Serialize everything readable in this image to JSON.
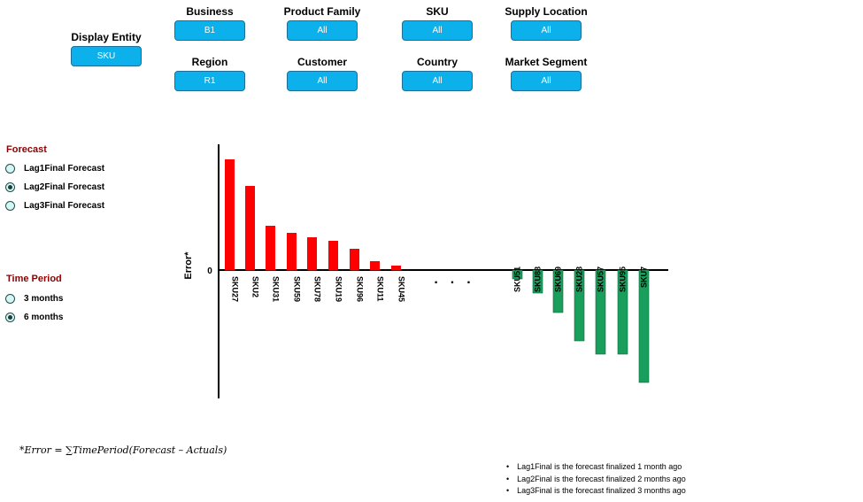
{
  "display_entity": {
    "label": "Display Entity",
    "value": "SKU"
  },
  "filters": [
    {
      "label": "Business",
      "value": "B1"
    },
    {
      "label": "Product Family",
      "value": "All"
    },
    {
      "label": "SKU",
      "value": "All"
    },
    {
      "label": "Supply Location",
      "value": "All"
    },
    {
      "label": "Region",
      "value": "R1"
    },
    {
      "label": "Customer",
      "value": "All"
    },
    {
      "label": "Country",
      "value": "All"
    },
    {
      "label": "Market Segment",
      "value": "All"
    }
  ],
  "forecast": {
    "title": "Forecast",
    "options": [
      "Lag1Final Forecast",
      "Lag2Final Forecast",
      "Lag3Final Forecast"
    ],
    "selected": 1
  },
  "time_period": {
    "title": "Time Period",
    "options": [
      "3 months",
      "6 months"
    ],
    "selected": 1
  },
  "chart_data": {
    "type": "bar",
    "ylabel": "Error*",
    "y_tick_labels": [
      "0"
    ],
    "ylim": [
      -145,
      140
    ],
    "grid": false,
    "legend": "none",
    "colors": {
      "positive": "#ff0000",
      "negative": "#1a9e5c"
    },
    "ellipsis": "...",
    "categories": [
      "SKU27",
      "SKU2",
      "SKU31",
      "SKU59",
      "SKU78",
      "SKU19",
      "SKU96",
      "SKU11",
      "SKU45",
      "SKU51",
      "SKU88",
      "SKU69",
      "SKU28",
      "SKU57",
      "SKU95",
      "SKU7"
    ],
    "values": [
      125,
      95,
      50,
      42,
      37,
      33,
      24,
      10,
      5,
      -10,
      -26,
      -48,
      -80,
      -95,
      -95,
      -127
    ]
  },
  "formula": "*Error = ∑TimePeriod(Forecast – Actuals)",
  "notes": [
    "Lag1Final is the forecast finalized 1 month ago",
    "Lag2Final is the forecast finalized 2 months ago",
    "Lag3Final is the forecast finalized 3 months ago"
  ]
}
